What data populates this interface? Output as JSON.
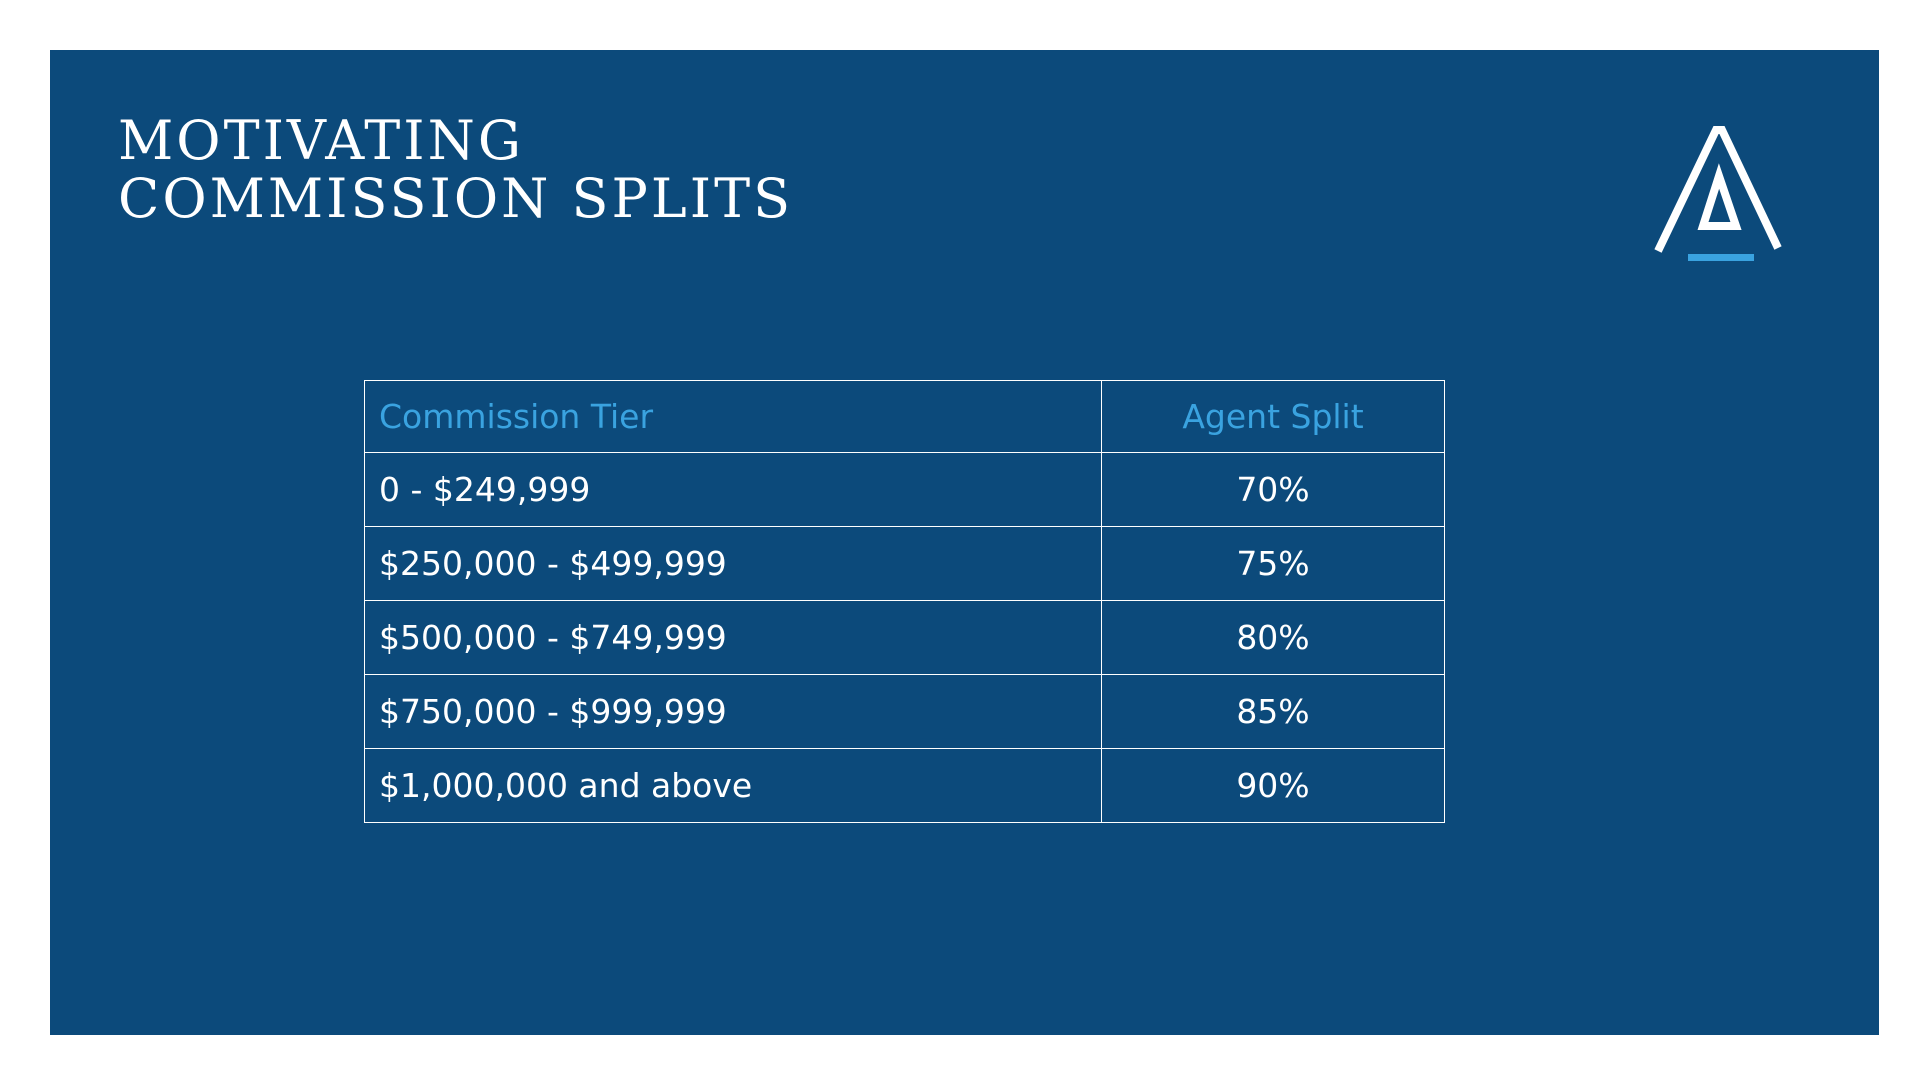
{
  "slide": {
    "title_line1": "MOTIVATING",
    "title_line2": "COMMISSION SPLITS",
    "logo_icon": "triangle-a-logo-icon",
    "colors": {
      "background": "#0c4a7b",
      "accent": "#3aa3e0",
      "text": "#ffffff"
    }
  },
  "table": {
    "headers": {
      "tier": "Commission Tier",
      "split": "Agent Split"
    },
    "rows": [
      {
        "tier": "0 - $249,999",
        "split": "70%"
      },
      {
        "tier": "$250,000 - $499,999",
        "split": "75%"
      },
      {
        "tier": "$500,000 - $749,999",
        "split": "80%"
      },
      {
        "tier": "$750,000 - $999,999",
        "split": "85%"
      },
      {
        "tier": "$1,000,000 and above",
        "split": "90%"
      }
    ]
  }
}
